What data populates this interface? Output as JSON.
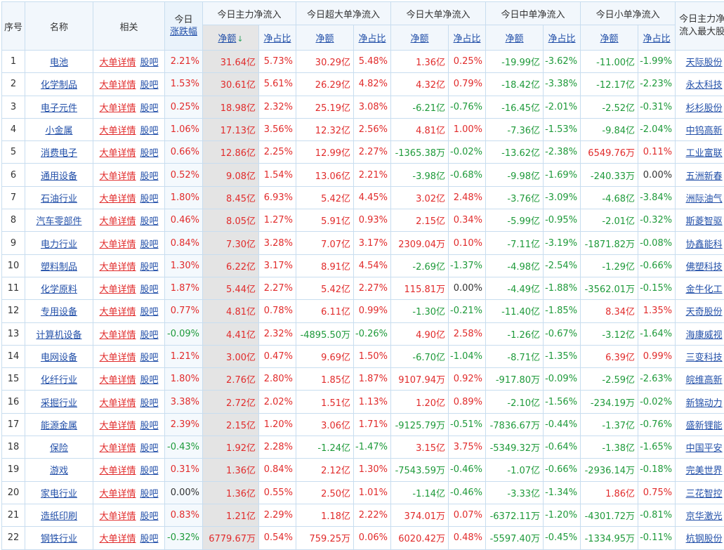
{
  "headers": {
    "seq": "序号",
    "name": "名称",
    "related": "相关",
    "change_line1": "今日",
    "change_line2": "涨跌幅",
    "main": "今日主力净流入",
    "super": "今日超大单净流入",
    "large": "今日大单净流入",
    "medium": "今日中单净流入",
    "small": "今日小单净流入",
    "leader_line1": "今日主力净",
    "leader_line2": "流入最大股",
    "sub_amount": "净额",
    "sub_ratio": "净占比",
    "sort_arrow": "↓"
  },
  "links": {
    "big_order": "大单详情",
    "forum": "股吧"
  },
  "colors": {
    "up": "#e12b2b",
    "down": "#1e9a3a",
    "link": "#2350a9"
  },
  "rows": [
    {
      "seq": "1",
      "name": "电池",
      "chg": "2.21%",
      "m_amt": "31.64亿",
      "m_pct": "5.73%",
      "s_amt": "30.29亿",
      "s_pct": "5.48%",
      "l_amt": "1.36亿",
      "l_pct": "0.25%",
      "md_amt": "-19.99亿",
      "md_pct": "-3.62%",
      "sm_amt": "-11.00亿",
      "sm_pct": "-1.99%",
      "leader": "天际股份"
    },
    {
      "seq": "2",
      "name": "化学制品",
      "chg": "1.53%",
      "m_amt": "30.61亿",
      "m_pct": "5.61%",
      "s_amt": "26.29亿",
      "s_pct": "4.82%",
      "l_amt": "4.32亿",
      "l_pct": "0.79%",
      "md_amt": "-18.42亿",
      "md_pct": "-3.38%",
      "sm_amt": "-12.17亿",
      "sm_pct": "-2.23%",
      "leader": "永太科技"
    },
    {
      "seq": "3",
      "name": "电子元件",
      "chg": "0.25%",
      "m_amt": "18.98亿",
      "m_pct": "2.32%",
      "s_amt": "25.19亿",
      "s_pct": "3.08%",
      "l_amt": "-6.21亿",
      "l_pct": "-0.76%",
      "md_amt": "-16.45亿",
      "md_pct": "-2.01%",
      "sm_amt": "-2.52亿",
      "sm_pct": "-0.31%",
      "leader": "杉杉股份"
    },
    {
      "seq": "4",
      "name": "小金属",
      "chg": "1.06%",
      "m_amt": "17.13亿",
      "m_pct": "3.56%",
      "s_amt": "12.32亿",
      "s_pct": "2.56%",
      "l_amt": "4.81亿",
      "l_pct": "1.00%",
      "md_amt": "-7.36亿",
      "md_pct": "-1.53%",
      "sm_amt": "-9.84亿",
      "sm_pct": "-2.04%",
      "leader": "中钨高新"
    },
    {
      "seq": "5",
      "name": "消费电子",
      "chg": "0.66%",
      "m_amt": "12.86亿",
      "m_pct": "2.25%",
      "s_amt": "12.99亿",
      "s_pct": "2.27%",
      "l_amt": "-1365.38万",
      "l_pct": "-0.02%",
      "md_amt": "-13.62亿",
      "md_pct": "-2.38%",
      "sm_amt": "6549.76万",
      "sm_pct": "0.11%",
      "leader": "工业富联"
    },
    {
      "seq": "6",
      "name": "通用设备",
      "chg": "0.52%",
      "m_amt": "9.08亿",
      "m_pct": "1.54%",
      "s_amt": "13.06亿",
      "s_pct": "2.21%",
      "l_amt": "-3.98亿",
      "l_pct": "-0.68%",
      "md_amt": "-9.98亿",
      "md_pct": "-1.69%",
      "sm_amt": "-240.33万",
      "sm_pct": "0.00%",
      "leader": "五洲新春"
    },
    {
      "seq": "7",
      "name": "石油行业",
      "chg": "1.80%",
      "m_amt": "8.45亿",
      "m_pct": "6.93%",
      "s_amt": "5.42亿",
      "s_pct": "4.45%",
      "l_amt": "3.02亿",
      "l_pct": "2.48%",
      "md_amt": "-3.76亿",
      "md_pct": "-3.09%",
      "sm_amt": "-4.68亿",
      "sm_pct": "-3.84%",
      "leader": "洲际油气"
    },
    {
      "seq": "8",
      "name": "汽车零部件",
      "chg": "0.46%",
      "m_amt": "8.05亿",
      "m_pct": "1.27%",
      "s_amt": "5.91亿",
      "s_pct": "0.93%",
      "l_amt": "2.15亿",
      "l_pct": "0.34%",
      "md_amt": "-5.99亿",
      "md_pct": "-0.95%",
      "sm_amt": "-2.01亿",
      "sm_pct": "-0.32%",
      "leader": "斯菱智驱"
    },
    {
      "seq": "9",
      "name": "电力行业",
      "chg": "0.84%",
      "m_amt": "7.30亿",
      "m_pct": "3.28%",
      "s_amt": "7.07亿",
      "s_pct": "3.17%",
      "l_amt": "2309.04万",
      "l_pct": "0.10%",
      "md_amt": "-7.11亿",
      "md_pct": "-3.19%",
      "sm_amt": "-1871.82万",
      "sm_pct": "-0.08%",
      "leader": "协鑫能科"
    },
    {
      "seq": "10",
      "name": "塑料制品",
      "chg": "1.30%",
      "m_amt": "6.22亿",
      "m_pct": "3.17%",
      "s_amt": "8.91亿",
      "s_pct": "4.54%",
      "l_amt": "-2.69亿",
      "l_pct": "-1.37%",
      "md_amt": "-4.98亿",
      "md_pct": "-2.54%",
      "sm_amt": "-1.29亿",
      "sm_pct": "-0.66%",
      "leader": "佛塑科技"
    },
    {
      "seq": "11",
      "name": "化学原料",
      "chg": "1.87%",
      "m_amt": "5.44亿",
      "m_pct": "2.27%",
      "s_amt": "5.42亿",
      "s_pct": "2.27%",
      "l_amt": "115.81万",
      "l_pct": "0.00%",
      "md_amt": "-4.49亿",
      "md_pct": "-1.88%",
      "sm_amt": "-3562.01万",
      "sm_pct": "-0.15%",
      "leader": "金牛化工"
    },
    {
      "seq": "12",
      "name": "专用设备",
      "chg": "0.77%",
      "m_amt": "4.81亿",
      "m_pct": "0.78%",
      "s_amt": "6.11亿",
      "s_pct": "0.99%",
      "l_amt": "-1.30亿",
      "l_pct": "-0.21%",
      "md_amt": "-11.40亿",
      "md_pct": "-1.85%",
      "sm_amt": "8.34亿",
      "sm_pct": "1.35%",
      "leader": "天奇股份"
    },
    {
      "seq": "13",
      "name": "计算机设备",
      "chg": "-0.09%",
      "m_amt": "4.41亿",
      "m_pct": "2.32%",
      "s_amt": "-4895.50万",
      "s_pct": "-0.26%",
      "l_amt": "4.90亿",
      "l_pct": "2.58%",
      "md_amt": "-1.26亿",
      "md_pct": "-0.67%",
      "sm_amt": "-3.12亿",
      "sm_pct": "-1.64%",
      "leader": "海康威视"
    },
    {
      "seq": "14",
      "name": "电网设备",
      "chg": "1.21%",
      "m_amt": "3.00亿",
      "m_pct": "0.47%",
      "s_amt": "9.69亿",
      "s_pct": "1.50%",
      "l_amt": "-6.70亿",
      "l_pct": "-1.04%",
      "md_amt": "-8.71亿",
      "md_pct": "-1.35%",
      "sm_amt": "6.39亿",
      "sm_pct": "0.99%",
      "leader": "三变科技"
    },
    {
      "seq": "15",
      "name": "化纤行业",
      "chg": "1.80%",
      "m_amt": "2.76亿",
      "m_pct": "2.80%",
      "s_amt": "1.85亿",
      "s_pct": "1.87%",
      "l_amt": "9107.94万",
      "l_pct": "0.92%",
      "md_amt": "-917.80万",
      "md_pct": "-0.09%",
      "sm_amt": "-2.59亿",
      "sm_pct": "-2.63%",
      "leader": "皖维高新"
    },
    {
      "seq": "16",
      "name": "采掘行业",
      "chg": "3.38%",
      "m_amt": "2.72亿",
      "m_pct": "2.02%",
      "s_amt": "1.51亿",
      "s_pct": "1.13%",
      "l_amt": "1.20亿",
      "l_pct": "0.89%",
      "md_amt": "-2.10亿",
      "md_pct": "-1.56%",
      "sm_amt": "-234.19万",
      "sm_pct": "-0.02%",
      "leader": "新锦动力"
    },
    {
      "seq": "17",
      "name": "能源金属",
      "chg": "2.39%",
      "m_amt": "2.15亿",
      "m_pct": "1.20%",
      "s_amt": "3.06亿",
      "s_pct": "1.71%",
      "l_amt": "-9125.79万",
      "l_pct": "-0.51%",
      "md_amt": "-7836.67万",
      "md_pct": "-0.44%",
      "sm_amt": "-1.37亿",
      "sm_pct": "-0.76%",
      "leader": "盛新锂能"
    },
    {
      "seq": "18",
      "name": "保险",
      "chg": "-0.43%",
      "m_amt": "1.92亿",
      "m_pct": "2.28%",
      "s_amt": "-1.24亿",
      "s_pct": "-1.47%",
      "l_amt": "3.15亿",
      "l_pct": "3.75%",
      "md_amt": "-5349.32万",
      "md_pct": "-0.64%",
      "sm_amt": "-1.38亿",
      "sm_pct": "-1.65%",
      "leader": "中国平安"
    },
    {
      "seq": "19",
      "name": "游戏",
      "chg": "0.31%",
      "m_amt": "1.36亿",
      "m_pct": "0.84%",
      "s_amt": "2.12亿",
      "s_pct": "1.30%",
      "l_amt": "-7543.59万",
      "l_pct": "-0.46%",
      "md_amt": "-1.07亿",
      "md_pct": "-0.66%",
      "sm_amt": "-2936.14万",
      "sm_pct": "-0.18%",
      "leader": "完美世界"
    },
    {
      "seq": "20",
      "name": "家电行业",
      "chg": "0.00%",
      "m_amt": "1.36亿",
      "m_pct": "0.55%",
      "s_amt": "2.50亿",
      "s_pct": "1.01%",
      "l_amt": "-1.14亿",
      "l_pct": "-0.46%",
      "md_amt": "-3.33亿",
      "md_pct": "-1.34%",
      "sm_amt": "1.86亿",
      "sm_pct": "0.75%",
      "leader": "三花智控"
    },
    {
      "seq": "21",
      "name": "造纸印刷",
      "chg": "0.83%",
      "m_amt": "1.21亿",
      "m_pct": "2.29%",
      "s_amt": "1.18亿",
      "s_pct": "2.22%",
      "l_amt": "374.01万",
      "l_pct": "0.07%",
      "md_amt": "-6372.11万",
      "md_pct": "-1.20%",
      "sm_amt": "-4301.72万",
      "sm_pct": "-0.81%",
      "leader": "京华激光"
    },
    {
      "seq": "22",
      "name": "钢铁行业",
      "chg": "-0.32%",
      "m_amt": "6779.67万",
      "m_pct": "0.54%",
      "s_amt": "759.25万",
      "s_pct": "0.06%",
      "l_amt": "6020.42万",
      "l_pct": "0.48%",
      "md_amt": "-5597.40万",
      "md_pct": "-0.45%",
      "sm_amt": "-1334.95万",
      "sm_pct": "-0.11%",
      "leader": "杭钢股份"
    }
  ]
}
